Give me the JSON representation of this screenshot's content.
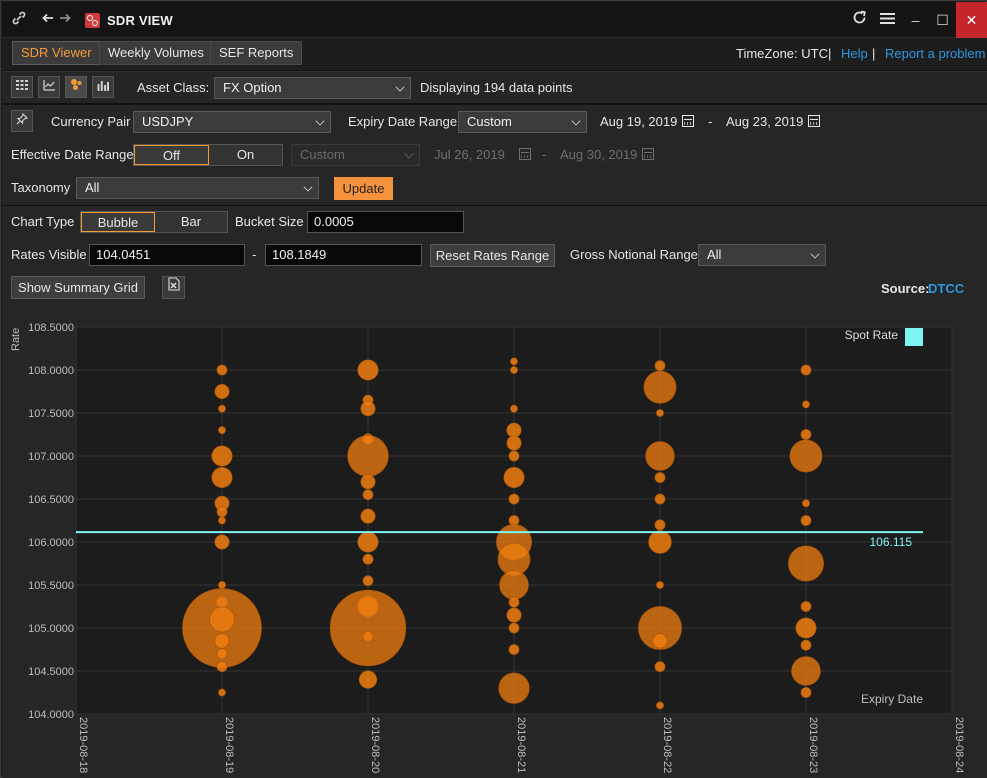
{
  "window": {
    "title": "SDR VIEW",
    "buttons": {
      "minimize": "–",
      "maximize": "☐",
      "close": "✕"
    }
  },
  "nav": {
    "tabs": [
      "SDR Viewer",
      "Weekly Volumes",
      "SEF Reports"
    ],
    "active_tab": "SDR Viewer",
    "timezone_label": "TimeZone: UTC",
    "separator": "|",
    "help": "Help",
    "report": "Report a problem"
  },
  "toolbar": {
    "asset_class_label": "Asset Class:",
    "asset_class_value": "FX Option",
    "status_text": "Displaying 194 data points"
  },
  "filters": {
    "currency_pair_label": "Currency Pair",
    "currency_pair_value": "USDJPY",
    "expiry_range_label": "Expiry Date Range",
    "expiry_range_value": "Custom",
    "expiry_from": "Aug 19, 2019",
    "expiry_to": "Aug 23, 2019",
    "range_dash": "-",
    "effective_range_label": "Effective Date Range",
    "effective_toggle": [
      "Off",
      "On"
    ],
    "effective_selected": "Off",
    "effective_range_value": "Custom",
    "effective_from": "Jul 26, 2019",
    "effective_to": "Aug 30, 2019",
    "taxonomy_label": "Taxonomy",
    "taxonomy_value": "All",
    "update_button": "Update"
  },
  "chart_controls": {
    "chart_type_label": "Chart Type",
    "chart_types": [
      "Bubble",
      "Bar"
    ],
    "chart_type_selected": "Bubble",
    "bucket_label": "Bucket Size",
    "bucket_value": "0.0005",
    "rates_label": "Rates Visible",
    "rate_min": "104.0451",
    "rate_max": "108.1849",
    "reset_button": "Reset Rates Range",
    "notional_label": "Gross Notional Range",
    "notional_value": "All",
    "summary_button": "Show Summary Grid",
    "source_label": "Source:",
    "source_value": "DTCC"
  },
  "colors": {
    "accent": "#f5923b",
    "bubble": "#f07d10",
    "spot": "#7ff5f2",
    "link": "#2d97e0"
  },
  "chart_data": {
    "type": "scatter",
    "ylabel": "Rate",
    "xlabel": "Expiry Date",
    "ylim": [
      104.0,
      108.5
    ],
    "y_ticks": [
      "108.5000",
      "108.0000",
      "107.5000",
      "107.0000",
      "106.5000",
      "106.0000",
      "105.5000",
      "105.0000",
      "104.5000",
      "104.0000"
    ],
    "x_ticks": [
      "2019-08-18",
      "2019-08-19",
      "2019-08-20",
      "2019-08-21",
      "2019-08-22",
      "2019-08-23",
      "2019-08-24"
    ],
    "legend": {
      "label": "Spot Rate",
      "position": "top-right"
    },
    "spot_rate": 106.115,
    "spot_label": "106.115",
    "series": [
      {
        "name": "",
        "points": [
          {
            "x": "2019-08-19",
            "y": 108.0,
            "size": 1
          },
          {
            "x": "2019-08-19",
            "y": 107.75,
            "size": 2
          },
          {
            "x": "2019-08-19",
            "y": 107.55,
            "size": 0.5
          },
          {
            "x": "2019-08-19",
            "y": 107.3,
            "size": 0.5
          },
          {
            "x": "2019-08-19",
            "y": 107.0,
            "size": 4
          },
          {
            "x": "2019-08-19",
            "y": 106.75,
            "size": 4
          },
          {
            "x": "2019-08-19",
            "y": 106.45,
            "size": 2
          },
          {
            "x": "2019-08-19",
            "y": 106.35,
            "size": 1
          },
          {
            "x": "2019-08-19",
            "y": 106.25,
            "size": 0.5
          },
          {
            "x": "2019-08-19",
            "y": 106.0,
            "size": 2
          },
          {
            "x": "2019-08-19",
            "y": 105.5,
            "size": 0.5
          },
          {
            "x": "2019-08-19",
            "y": 105.3,
            "size": 1
          },
          {
            "x": "2019-08-19",
            "y": 105.0,
            "size": 60
          },
          {
            "x": "2019-08-19",
            "y": 105.1,
            "size": 6
          },
          {
            "x": "2019-08-19",
            "y": 104.85,
            "size": 2
          },
          {
            "x": "2019-08-19",
            "y": 104.7,
            "size": 1
          },
          {
            "x": "2019-08-19",
            "y": 104.55,
            "size": 1
          },
          {
            "x": "2019-08-19",
            "y": 104.25,
            "size": 0.5
          },
          {
            "x": "2019-08-20",
            "y": 108.0,
            "size": 4
          },
          {
            "x": "2019-08-20",
            "y": 107.65,
            "size": 1
          },
          {
            "x": "2019-08-20",
            "y": 107.55,
            "size": 2
          },
          {
            "x": "2019-08-20",
            "y": 107.2,
            "size": 1
          },
          {
            "x": "2019-08-20",
            "y": 107.0,
            "size": 16
          },
          {
            "x": "2019-08-20",
            "y": 106.7,
            "size": 2
          },
          {
            "x": "2019-08-20",
            "y": 106.55,
            "size": 1
          },
          {
            "x": "2019-08-20",
            "y": 106.3,
            "size": 2
          },
          {
            "x": "2019-08-20",
            "y": 106.0,
            "size": 4
          },
          {
            "x": "2019-08-20",
            "y": 105.8,
            "size": 1
          },
          {
            "x": "2019-08-20",
            "y": 105.55,
            "size": 1
          },
          {
            "x": "2019-08-20",
            "y": 105.25,
            "size": 4
          },
          {
            "x": "2019-08-20",
            "y": 105.0,
            "size": 55
          },
          {
            "x": "2019-08-20",
            "y": 104.9,
            "size": 1
          },
          {
            "x": "2019-08-20",
            "y": 104.4,
            "size": 3
          },
          {
            "x": "2019-08-21",
            "y": 108.1,
            "size": 0.5
          },
          {
            "x": "2019-08-21",
            "y": 108.0,
            "size": 0.5
          },
          {
            "x": "2019-08-21",
            "y": 107.55,
            "size": 0.5
          },
          {
            "x": "2019-08-21",
            "y": 107.3,
            "size": 2
          },
          {
            "x": "2019-08-21",
            "y": 107.15,
            "size": 2
          },
          {
            "x": "2019-08-21",
            "y": 107.0,
            "size": 1
          },
          {
            "x": "2019-08-21",
            "y": 106.75,
            "size": 4
          },
          {
            "x": "2019-08-21",
            "y": 106.5,
            "size": 1
          },
          {
            "x": "2019-08-21",
            "y": 106.25,
            "size": 1
          },
          {
            "x": "2019-08-21",
            "y": 106.0,
            "size": 12
          },
          {
            "x": "2019-08-21",
            "y": 105.8,
            "size": 10
          },
          {
            "x": "2019-08-21",
            "y": 105.5,
            "size": 8
          },
          {
            "x": "2019-08-21",
            "y": 105.3,
            "size": 1
          },
          {
            "x": "2019-08-21",
            "y": 105.15,
            "size": 2
          },
          {
            "x": "2019-08-21",
            "y": 105.0,
            "size": 1
          },
          {
            "x": "2019-08-21",
            "y": 104.75,
            "size": 1
          },
          {
            "x": "2019-08-21",
            "y": 104.3,
            "size": 9
          },
          {
            "x": "2019-08-22",
            "y": 108.05,
            "size": 1
          },
          {
            "x": "2019-08-22",
            "y": 107.8,
            "size": 10
          },
          {
            "x": "2019-08-22",
            "y": 107.5,
            "size": 0.5
          },
          {
            "x": "2019-08-22",
            "y": 107.0,
            "size": 8
          },
          {
            "x": "2019-08-22",
            "y": 106.75,
            "size": 1
          },
          {
            "x": "2019-08-22",
            "y": 106.5,
            "size": 1
          },
          {
            "x": "2019-08-22",
            "y": 106.2,
            "size": 1
          },
          {
            "x": "2019-08-22",
            "y": 106.0,
            "size": 5
          },
          {
            "x": "2019-08-22",
            "y": 105.5,
            "size": 0.5
          },
          {
            "x": "2019-08-22",
            "y": 105.0,
            "size": 18
          },
          {
            "x": "2019-08-22",
            "y": 104.85,
            "size": 2
          },
          {
            "x": "2019-08-22",
            "y": 104.55,
            "size": 1
          },
          {
            "x": "2019-08-22",
            "y": 104.1,
            "size": 0.5
          },
          {
            "x": "2019-08-23",
            "y": 108.0,
            "size": 1
          },
          {
            "x": "2019-08-23",
            "y": 107.6,
            "size": 0.5
          },
          {
            "x": "2019-08-23",
            "y": 107.25,
            "size": 1
          },
          {
            "x": "2019-08-23",
            "y": 107.0,
            "size": 10
          },
          {
            "x": "2019-08-23",
            "y": 106.45,
            "size": 0.5
          },
          {
            "x": "2019-08-23",
            "y": 106.25,
            "size": 1
          },
          {
            "x": "2019-08-23",
            "y": 105.75,
            "size": 12
          },
          {
            "x": "2019-08-23",
            "y": 105.25,
            "size": 1
          },
          {
            "x": "2019-08-23",
            "y": 105.0,
            "size": 4
          },
          {
            "x": "2019-08-23",
            "y": 104.8,
            "size": 1
          },
          {
            "x": "2019-08-23",
            "y": 104.5,
            "size": 8
          },
          {
            "x": "2019-08-23",
            "y": 104.25,
            "size": 1
          }
        ]
      }
    ]
  }
}
